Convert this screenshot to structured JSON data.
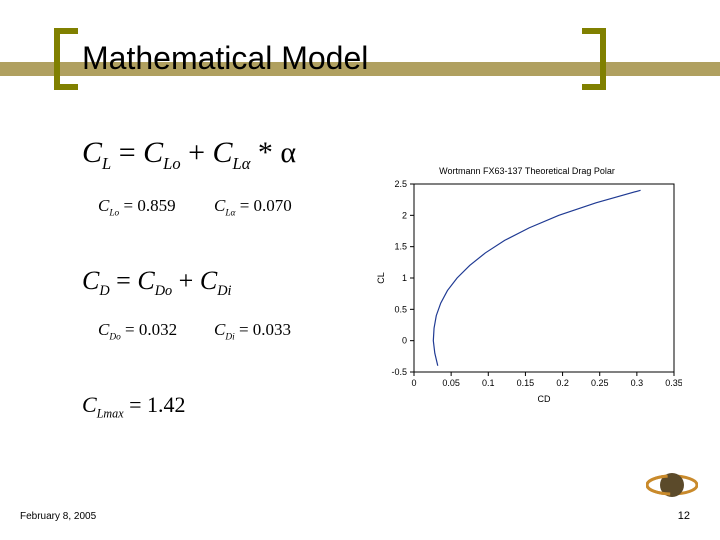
{
  "title": "Mathematical Model",
  "band_color": "#b0a060",
  "bracket_color": "#808000",
  "equations": {
    "cl_main": {
      "lhs": "C",
      "lhs_sub": "L",
      "rhs1": "C",
      "rhs1_sub": "Lo",
      "rhs2": "C",
      "rhs2_sub": "Lα",
      "tail": "* α"
    },
    "clo": {
      "sym": "C",
      "sub": "Lo",
      "val": "0.859"
    },
    "cla": {
      "sym": "C",
      "sub": "Lα",
      "val": "0.070"
    },
    "cd_main": {
      "lhs": "C",
      "lhs_sub": "D",
      "rhs1": "C",
      "rhs1_sub": "Do",
      "rhs2": "C",
      "rhs2_sub": "Di"
    },
    "cdo": {
      "sym": "C",
      "sub": "Do",
      "val": "0.032"
    },
    "cdi": {
      "sym": "C",
      "sub": "Di",
      "val": "0.033"
    },
    "clmax": {
      "sym": "C",
      "sub": "Lmax",
      "val": "1.42"
    }
  },
  "chart": {
    "title": "Wortmann FX63-137 Theoretical Drag Polar",
    "xlabel": "CD",
    "ylabel": "CL",
    "xlim": [
      0,
      0.35
    ],
    "ylim": [
      -0.5,
      2.5
    ],
    "xticks": [
      "0",
      "0.05",
      "0.1",
      "0.15",
      "0.2",
      "0.25",
      "0.3",
      "0.35"
    ],
    "yticks": [
      "-0.5",
      "0",
      "0.5",
      "1",
      "1.5",
      "2",
      "2.5"
    ],
    "series_color": "#1f3a93",
    "axis_color": "#000000",
    "tick_fontsize": 9,
    "data": [
      [
        0.032,
        -0.4
      ],
      [
        0.028,
        -0.2
      ],
      [
        0.026,
        0.0
      ],
      [
        0.027,
        0.2
      ],
      [
        0.03,
        0.4
      ],
      [
        0.036,
        0.6
      ],
      [
        0.045,
        0.8
      ],
      [
        0.058,
        1.0
      ],
      [
        0.075,
        1.2
      ],
      [
        0.096,
        1.4
      ],
      [
        0.122,
        1.6
      ],
      [
        0.155,
        1.8
      ],
      [
        0.195,
        2.0
      ],
      [
        0.245,
        2.2
      ],
      [
        0.305,
        2.4
      ]
    ]
  },
  "footer": {
    "date": "February 8, 2005",
    "page": "12"
  },
  "logo_colors": {
    "ring": "#c98a2b",
    "planet": "#5b4a2a",
    "text": "#ffffff"
  }
}
